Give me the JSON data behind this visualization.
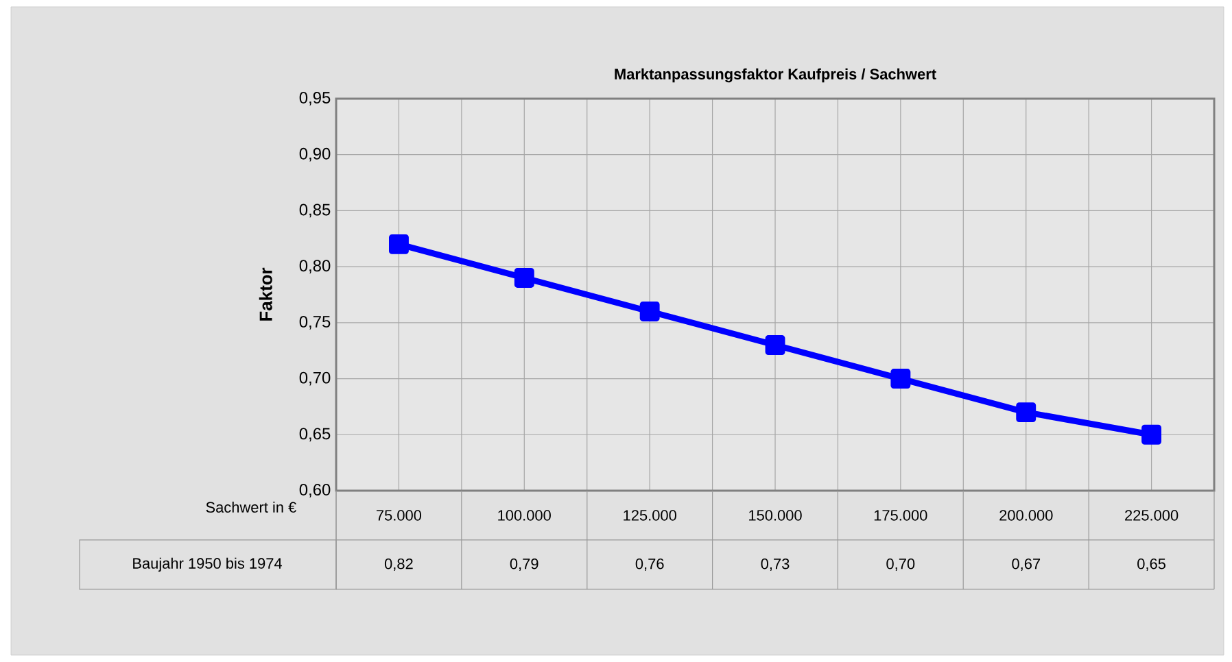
{
  "chart_data": {
    "type": "line",
    "title": "Marktanpassungsfaktor Kaufpreis / Sachwert",
    "ylabel": "Faktor",
    "xlabel": "Sachwert in €",
    "categories": [
      "75.000",
      "100.000",
      "125.000",
      "150.000",
      "175.000",
      "200.000",
      "225.000"
    ],
    "series": [
      {
        "name": "Baujahr 1950 bis 1974",
        "color": "#0000ff",
        "values": [
          0.82,
          0.79,
          0.76,
          0.73,
          0.7,
          0.67,
          0.65
        ],
        "value_labels": [
          "0,82",
          "0,79",
          "0,76",
          "0,73",
          "0,70",
          "0,67",
          "0,65"
        ]
      }
    ],
    "ylim": [
      0.6,
      0.95
    ],
    "yticks": [
      {
        "value": 0.6,
        "label": "0,60"
      },
      {
        "value": 0.65,
        "label": "0,65"
      },
      {
        "value": 0.7,
        "label": "0,70"
      },
      {
        "value": 0.75,
        "label": "0,75"
      },
      {
        "value": 0.8,
        "label": "0,80"
      },
      {
        "value": 0.85,
        "label": "0,85"
      },
      {
        "value": 0.9,
        "label": "0,90"
      },
      {
        "value": 0.95,
        "label": "0,95"
      }
    ],
    "grid": true,
    "marker": "square",
    "line_style": "solid"
  }
}
